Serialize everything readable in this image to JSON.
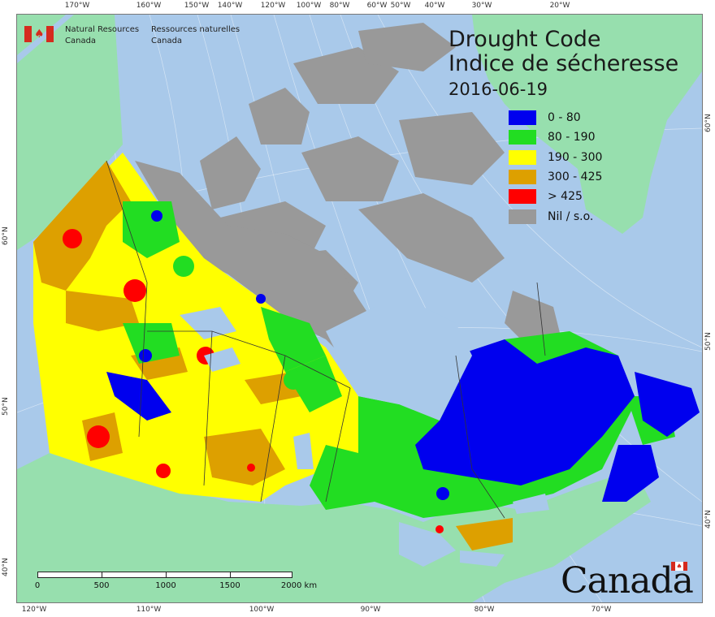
{
  "header": {
    "agency_en_line1": "Natural Resources",
    "agency_en_line2": "Canada",
    "agency_fr_line1": "Ressources naturelles",
    "agency_fr_line2": "Canada"
  },
  "title": {
    "en": "Drought Code",
    "fr": "Indice de sécheresse",
    "date": "2016-06-19"
  },
  "legend": {
    "items": [
      {
        "label": "0 - 80",
        "color": "#0000ee"
      },
      {
        "label": "80 - 190",
        "color": "#22dd22"
      },
      {
        "label": "190 - 300",
        "color": "#ffff00"
      },
      {
        "label": "300 - 425",
        "color": "#dda000"
      },
      {
        "label": "> 425",
        "color": "#ff0000"
      },
      {
        "label": "Nil / s.o.",
        "color": "#999999"
      }
    ]
  },
  "colors": {
    "water": "#a9c9ea",
    "foreign_land": "#97dfae",
    "no_data": "#999999"
  },
  "graticule": {
    "top": [
      "170°W",
      "160°W",
      "150°W",
      "140°W",
      "120°W",
      "100°W",
      "80°W",
      "60°W",
      "50°W",
      "40°W",
      "30°W",
      "20°W"
    ],
    "bottom": [
      "120°W",
      "110°W",
      "100°W",
      "90°W",
      "80°W",
      "70°W"
    ],
    "left": [
      "60°N",
      "50°N",
      "40°N"
    ],
    "right": [
      "60°N",
      "50°N",
      "40°N"
    ]
  },
  "scale_bar": {
    "labels": [
      "0",
      "500",
      "1000",
      "1500",
      "2000 km"
    ]
  },
  "wordmark": {
    "text": "Canada"
  }
}
